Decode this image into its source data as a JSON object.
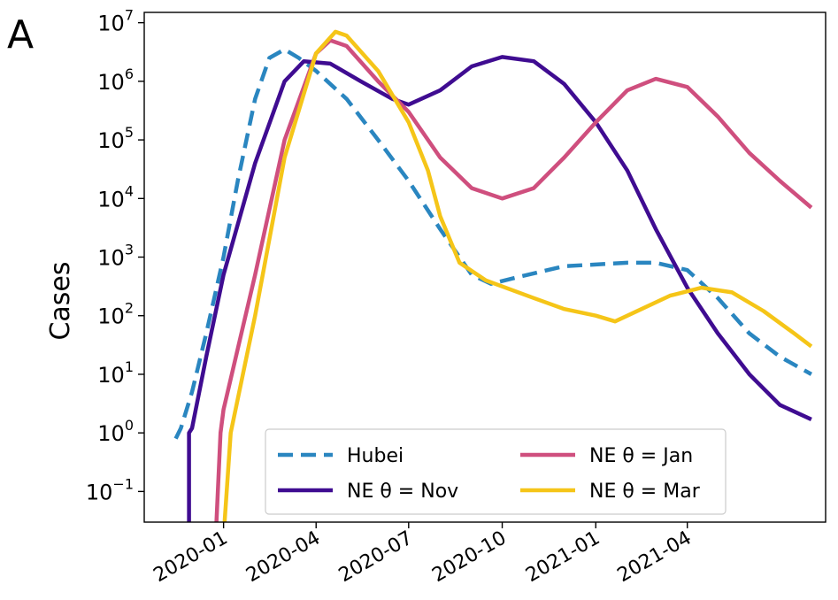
{
  "panel_label": "A",
  "chart_data": {
    "type": "line",
    "title": "",
    "xlabel": "",
    "ylabel": "Cases",
    "yscale": "log",
    "xlim": [
      "2019-10-15",
      "2021-08-15"
    ],
    "ylim": [
      0.03,
      15000000
    ],
    "grid": false,
    "legend_position": "bottom-center",
    "xticks": [
      {
        "date": "2020-01-01",
        "label": "2020-01"
      },
      {
        "date": "2020-04-01",
        "label": "2020-04"
      },
      {
        "date": "2020-07-01",
        "label": "2020-07"
      },
      {
        "date": "2020-10-01",
        "label": "2020-10"
      },
      {
        "date": "2021-01-01",
        "label": "2021-01"
      },
      {
        "date": "2021-04-01",
        "label": "2021-04"
      }
    ],
    "yticks": [
      {
        "value": 0.1,
        "base": "10",
        "exp": "−1"
      },
      {
        "value": 1,
        "base": "10",
        "exp": "0"
      },
      {
        "value": 10,
        "base": "10",
        "exp": "1"
      },
      {
        "value": 100,
        "base": "10",
        "exp": "2"
      },
      {
        "value": 1000,
        "base": "10",
        "exp": "3"
      },
      {
        "value": 10000,
        "base": "10",
        "exp": "4"
      },
      {
        "value": 100000,
        "base": "10",
        "exp": "5"
      },
      {
        "value": 1000000,
        "base": "10",
        "exp": "6"
      },
      {
        "value": 10000000,
        "base": "10",
        "exp": "7"
      }
    ],
    "series": [
      {
        "name": "Hubei",
        "color": "#2a86c0",
        "style": "dashed",
        "points": [
          [
            "2019-11-15",
            0.8
          ],
          [
            "2019-11-20",
            1.2
          ],
          [
            "2019-12-01",
            5
          ],
          [
            "2019-12-15",
            50
          ],
          [
            "2020-01-01",
            1000
          ],
          [
            "2020-01-15",
            20000
          ],
          [
            "2020-02-01",
            500000
          ],
          [
            "2020-02-15",
            2500000
          ],
          [
            "2020-03-01",
            3500000
          ],
          [
            "2020-03-15",
            2500000
          ],
          [
            "2020-04-01",
            1500000
          ],
          [
            "2020-05-01",
            500000
          ],
          [
            "2020-06-01",
            100000
          ],
          [
            "2020-07-01",
            20000
          ],
          [
            "2020-08-01",
            3000
          ],
          [
            "2020-09-01",
            500
          ],
          [
            "2020-09-20",
            350
          ],
          [
            "2020-10-15",
            450
          ],
          [
            "2020-12-01",
            700
          ],
          [
            "2021-02-01",
            800
          ],
          [
            "2021-03-01",
            800
          ],
          [
            "2021-04-01",
            600
          ],
          [
            "2021-05-01",
            200
          ],
          [
            "2021-06-01",
            50
          ],
          [
            "2021-07-01",
            20
          ],
          [
            "2021-08-01",
            10
          ]
        ]
      },
      {
        "name": "NE θ = Nov",
        "color": "#3f0c91",
        "style": "solid",
        "points": [
          [
            "2019-11-28",
            0.03
          ],
          [
            "2019-11-28",
            1
          ],
          [
            "2019-12-01",
            1.2
          ],
          [
            "2019-12-15",
            20
          ],
          [
            "2020-01-01",
            500
          ],
          [
            "2020-02-01",
            40000
          ],
          [
            "2020-03-01",
            1000000
          ],
          [
            "2020-03-20",
            2200000
          ],
          [
            "2020-04-15",
            2000000
          ],
          [
            "2020-05-15",
            1000000
          ],
          [
            "2020-06-15",
            500000
          ],
          [
            "2020-07-01",
            400000
          ],
          [
            "2020-08-01",
            700000
          ],
          [
            "2020-09-01",
            1800000
          ],
          [
            "2020-10-01",
            2600000
          ],
          [
            "2020-11-01",
            2200000
          ],
          [
            "2020-12-01",
            900000
          ],
          [
            "2021-01-01",
            200000
          ],
          [
            "2021-02-01",
            30000
          ],
          [
            "2021-03-01",
            3000
          ],
          [
            "2021-04-01",
            300
          ],
          [
            "2021-05-01",
            50
          ],
          [
            "2021-06-01",
            10
          ],
          [
            "2021-07-01",
            3
          ],
          [
            "2021-08-01",
            1.7
          ]
        ]
      },
      {
        "name": "NE θ = Jan",
        "color": "#cf4f7e",
        "style": "solid",
        "points": [
          [
            "2019-12-25",
            0.03
          ],
          [
            "2019-12-29",
            1
          ],
          [
            "2020-01-01",
            2.5
          ],
          [
            "2020-02-01",
            500
          ],
          [
            "2020-03-01",
            100000
          ],
          [
            "2020-04-01",
            3000000
          ],
          [
            "2020-04-15",
            5000000
          ],
          [
            "2020-05-01",
            4000000
          ],
          [
            "2020-06-01",
            1000000
          ],
          [
            "2020-07-01",
            300000
          ],
          [
            "2020-08-01",
            50000
          ],
          [
            "2020-09-01",
            15000
          ],
          [
            "2020-10-01",
            10000
          ],
          [
            "2020-11-01",
            15000
          ],
          [
            "2020-12-01",
            50000
          ],
          [
            "2021-01-01",
            200000
          ],
          [
            "2021-02-01",
            700000
          ],
          [
            "2021-03-01",
            1100000
          ],
          [
            "2021-04-01",
            800000
          ],
          [
            "2021-05-01",
            250000
          ],
          [
            "2021-06-01",
            60000
          ],
          [
            "2021-07-01",
            20000
          ],
          [
            "2021-08-01",
            7000
          ]
        ]
      },
      {
        "name": "NE θ = Mar",
        "color": "#f5c518",
        "style": "solid",
        "points": [
          [
            "2020-01-02",
            0.03
          ],
          [
            "2020-01-08",
            1
          ],
          [
            "2020-02-01",
            100
          ],
          [
            "2020-03-01",
            50000
          ],
          [
            "2020-04-01",
            3000000
          ],
          [
            "2020-04-20",
            7000000
          ],
          [
            "2020-05-01",
            6000000
          ],
          [
            "2020-06-01",
            1500000
          ],
          [
            "2020-07-01",
            200000
          ],
          [
            "2020-07-20",
            30000
          ],
          [
            "2020-08-01",
            5000
          ],
          [
            "2020-08-20",
            800
          ],
          [
            "2020-09-15",
            400
          ],
          [
            "2020-11-01",
            200
          ],
          [
            "2020-12-01",
            130
          ],
          [
            "2021-01-01",
            100
          ],
          [
            "2021-01-20",
            80
          ],
          [
            "2021-02-15",
            130
          ],
          [
            "2021-03-15",
            220
          ],
          [
            "2021-04-15",
            300
          ],
          [
            "2021-05-15",
            250
          ],
          [
            "2021-06-15",
            120
          ],
          [
            "2021-07-15",
            50
          ],
          [
            "2021-08-01",
            30
          ]
        ]
      }
    ],
    "legend": [
      {
        "label": "Hubei",
        "color": "#2a86c0",
        "style": "dashed"
      },
      {
        "label": "NE θ = Nov",
        "color": "#3f0c91",
        "style": "solid"
      },
      {
        "label": "NE θ = Jan",
        "color": "#cf4f7e",
        "style": "solid"
      },
      {
        "label": "NE θ = Mar",
        "color": "#f5c518",
        "style": "solid"
      }
    ]
  }
}
